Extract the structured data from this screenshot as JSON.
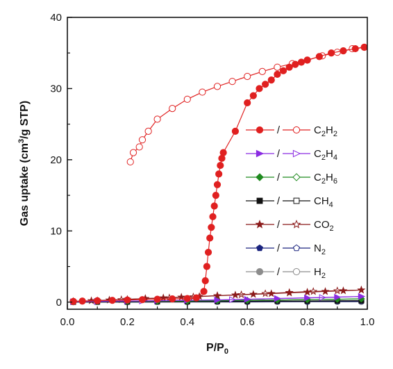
{
  "chart_data": {
    "type": "scatter",
    "xlabel": "P/P",
    "xlabel_sub": "0",
    "ylabel_parts": [
      "Gas uptake (cm",
      "3",
      "/g STP)"
    ],
    "xlim": [
      0.0,
      1.0
    ],
    "ylim": [
      -1.0,
      40.0
    ],
    "xticks": [
      0.0,
      0.2,
      0.4,
      0.6,
      0.8,
      1.0
    ],
    "xtick_labels": [
      "0.0",
      "0.2",
      "0.4",
      "0.6",
      "0.8",
      "1.0"
    ],
    "yticks": [
      0,
      10,
      20,
      30,
      40
    ],
    "ytick_labels": [
      "0",
      "10",
      "20",
      "30",
      "40"
    ],
    "grid": false,
    "legend_position": "right",
    "legend_separator": "/",
    "series": [
      {
        "name": "C2H2",
        "name_base": "C",
        "name_parts": [
          [
            "C",
            ""
          ],
          [
            "2",
            "sub"
          ],
          [
            "H",
            ""
          ],
          [
            "2",
            "sub"
          ]
        ],
        "color": "#e02020",
        "marker": "circle",
        "adsorption": [
          [
            0.02,
            0.1
          ],
          [
            0.05,
            0.15
          ],
          [
            0.1,
            0.2
          ],
          [
            0.15,
            0.25
          ],
          [
            0.2,
            0.3
          ],
          [
            0.25,
            0.35
          ],
          [
            0.3,
            0.4
          ],
          [
            0.35,
            0.45
          ],
          [
            0.4,
            0.5
          ],
          [
            0.43,
            0.6
          ],
          [
            0.455,
            1.5
          ],
          [
            0.46,
            3.0
          ],
          [
            0.465,
            5.0
          ],
          [
            0.47,
            7.0
          ],
          [
            0.475,
            9.0
          ],
          [
            0.48,
            10.5
          ],
          [
            0.485,
            12.0
          ],
          [
            0.49,
            13.5
          ],
          [
            0.495,
            15.0
          ],
          [
            0.5,
            16.5
          ],
          [
            0.505,
            18.0
          ],
          [
            0.51,
            19.2
          ],
          [
            0.515,
            20.2
          ],
          [
            0.52,
            21.0
          ],
          [
            0.56,
            24.0
          ],
          [
            0.6,
            28.0
          ],
          [
            0.62,
            29.0
          ],
          [
            0.64,
            30.0
          ],
          [
            0.66,
            30.6
          ],
          [
            0.68,
            31.2
          ],
          [
            0.7,
            32.0
          ],
          [
            0.72,
            32.5
          ],
          [
            0.74,
            33.0
          ],
          [
            0.76,
            33.4
          ],
          [
            0.78,
            33.7
          ],
          [
            0.8,
            34.0
          ],
          [
            0.84,
            34.5
          ],
          [
            0.88,
            35.0
          ],
          [
            0.92,
            35.3
          ],
          [
            0.96,
            35.6
          ],
          [
            0.99,
            35.8
          ]
        ],
        "desorption": [
          [
            0.99,
            35.8
          ],
          [
            0.95,
            35.6
          ],
          [
            0.9,
            35.1
          ],
          [
            0.85,
            34.6
          ],
          [
            0.8,
            34.0
          ],
          [
            0.75,
            33.5
          ],
          [
            0.7,
            33.0
          ],
          [
            0.65,
            32.4
          ],
          [
            0.6,
            31.7
          ],
          [
            0.55,
            31.0
          ],
          [
            0.5,
            30.3
          ],
          [
            0.45,
            29.5
          ],
          [
            0.4,
            28.5
          ],
          [
            0.35,
            27.2
          ],
          [
            0.3,
            25.7
          ],
          [
            0.27,
            24.0
          ],
          [
            0.25,
            22.8
          ],
          [
            0.24,
            21.8
          ],
          [
            0.22,
            21.0
          ],
          [
            0.21,
            19.7
          ]
        ]
      },
      {
        "name": "C2H4",
        "name_parts": [
          [
            "C",
            ""
          ],
          [
            "2",
            "sub"
          ],
          [
            "H",
            ""
          ],
          [
            "4",
            "sub"
          ]
        ],
        "color": "#8a2be2",
        "marker": "triangle-right",
        "adsorption": [
          [
            0.02,
            0.05
          ],
          [
            0.1,
            0.1
          ],
          [
            0.2,
            0.15
          ],
          [
            0.3,
            0.2
          ],
          [
            0.4,
            0.25
          ],
          [
            0.5,
            0.3
          ],
          [
            0.6,
            0.4
          ],
          [
            0.7,
            0.5
          ],
          [
            0.8,
            0.6
          ],
          [
            0.9,
            0.7
          ],
          [
            0.98,
            0.8
          ]
        ],
        "desorption": [
          [
            0.98,
            0.8
          ],
          [
            0.85,
            0.65
          ],
          [
            0.7,
            0.5
          ],
          [
            0.55,
            0.35
          ],
          [
            0.4,
            0.25
          ],
          [
            0.25,
            0.15
          ],
          [
            0.1,
            0.1
          ]
        ]
      },
      {
        "name": "C2H6",
        "name_parts": [
          [
            "C",
            ""
          ],
          [
            "2",
            "sub"
          ],
          [
            "H",
            ""
          ],
          [
            "6",
            "sub"
          ]
        ],
        "color": "#1f8a1f",
        "marker": "diamond",
        "adsorption": [
          [
            0.02,
            0.05
          ],
          [
            0.1,
            0.08
          ],
          [
            0.2,
            0.1
          ],
          [
            0.3,
            0.12
          ],
          [
            0.4,
            0.15
          ],
          [
            0.5,
            0.2
          ],
          [
            0.6,
            0.25
          ],
          [
            0.7,
            0.3
          ],
          [
            0.8,
            0.35
          ],
          [
            0.9,
            0.4
          ],
          [
            0.98,
            0.45
          ]
        ],
        "desorption": [
          [
            0.98,
            0.45
          ],
          [
            0.8,
            0.35
          ],
          [
            0.6,
            0.25
          ],
          [
            0.4,
            0.15
          ],
          [
            0.2,
            0.1
          ]
        ]
      },
      {
        "name": "CH4",
        "name_parts": [
          [
            "CH",
            ""
          ],
          [
            "4",
            "sub"
          ]
        ],
        "color": "#111111",
        "marker": "square",
        "adsorption": [
          [
            0.02,
            0.0
          ],
          [
            0.1,
            0.02
          ],
          [
            0.2,
            0.04
          ],
          [
            0.3,
            0.06
          ],
          [
            0.4,
            0.08
          ],
          [
            0.5,
            0.1
          ],
          [
            0.6,
            0.12
          ],
          [
            0.7,
            0.14
          ],
          [
            0.8,
            0.16
          ],
          [
            0.9,
            0.18
          ],
          [
            0.98,
            0.2
          ]
        ],
        "desorption": [
          [
            0.98,
            0.2
          ],
          [
            0.8,
            0.16
          ],
          [
            0.6,
            0.12
          ],
          [
            0.4,
            0.08
          ],
          [
            0.2,
            0.04
          ]
        ]
      },
      {
        "name": "CO2",
        "name_parts": [
          [
            "CO",
            ""
          ],
          [
            "2",
            "sub"
          ]
        ],
        "color": "#8b1a1a",
        "marker": "star",
        "adsorption": [
          [
            0.02,
            0.1
          ],
          [
            0.08,
            0.2
          ],
          [
            0.14,
            0.3
          ],
          [
            0.2,
            0.4
          ],
          [
            0.26,
            0.5
          ],
          [
            0.32,
            0.6
          ],
          [
            0.38,
            0.7
          ],
          [
            0.44,
            0.8
          ],
          [
            0.5,
            0.9
          ],
          [
            0.56,
            1.0
          ],
          [
            0.62,
            1.1
          ],
          [
            0.68,
            1.2
          ],
          [
            0.74,
            1.3
          ],
          [
            0.8,
            1.4
          ],
          [
            0.86,
            1.5
          ],
          [
            0.92,
            1.6
          ],
          [
            0.98,
            1.7
          ]
        ],
        "desorption": [
          [
            0.98,
            1.7
          ],
          [
            0.9,
            1.6
          ],
          [
            0.82,
            1.5
          ],
          [
            0.74,
            1.35
          ],
          [
            0.66,
            1.2
          ],
          [
            0.58,
            1.05
          ],
          [
            0.5,
            0.9
          ],
          [
            0.42,
            0.75
          ],
          [
            0.34,
            0.6
          ],
          [
            0.26,
            0.5
          ],
          [
            0.18,
            0.35
          ],
          [
            0.1,
            0.2
          ]
        ]
      },
      {
        "name": "N2",
        "name_parts": [
          [
            "N",
            ""
          ],
          [
            "2",
            "sub"
          ]
        ],
        "color": "#1a237e",
        "marker": "pentagon",
        "adsorption": [
          [
            0.02,
            0.0
          ],
          [
            0.1,
            0.0
          ],
          [
            0.2,
            0.02
          ],
          [
            0.3,
            0.03
          ],
          [
            0.4,
            0.04
          ],
          [
            0.5,
            0.05
          ],
          [
            0.6,
            0.06
          ],
          [
            0.7,
            0.07
          ],
          [
            0.8,
            0.08
          ],
          [
            0.9,
            0.09
          ],
          [
            0.98,
            0.1
          ]
        ],
        "desorption": [
          [
            0.98,
            0.1
          ],
          [
            0.8,
            0.08
          ],
          [
            0.6,
            0.06
          ],
          [
            0.4,
            0.04
          ],
          [
            0.2,
            0.02
          ]
        ]
      },
      {
        "name": "H2",
        "name_parts": [
          [
            "H",
            ""
          ],
          [
            "2",
            "sub"
          ]
        ],
        "color": "#8c8c8c",
        "marker": "circle",
        "adsorption": [
          [
            0.02,
            0.0
          ],
          [
            0.1,
            0.0
          ],
          [
            0.2,
            0.0
          ],
          [
            0.3,
            0.01
          ],
          [
            0.4,
            0.01
          ],
          [
            0.5,
            0.02
          ],
          [
            0.6,
            0.02
          ],
          [
            0.7,
            0.03
          ],
          [
            0.8,
            0.03
          ],
          [
            0.9,
            0.04
          ],
          [
            0.98,
            0.05
          ]
        ],
        "desorption": [
          [
            0.98,
            0.05
          ],
          [
            0.8,
            0.03
          ],
          [
            0.6,
            0.02
          ],
          [
            0.4,
            0.01
          ],
          [
            0.2,
            0.0
          ]
        ]
      }
    ]
  }
}
